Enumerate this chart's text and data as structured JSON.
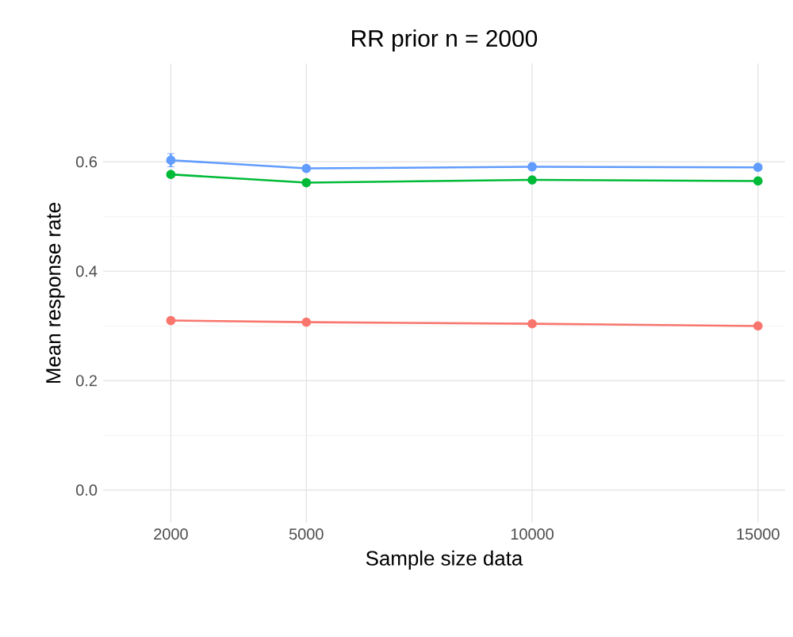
{
  "chart_data": {
    "type": "line",
    "title": "RR prior n = 2000",
    "xlabel": "Sample size data",
    "ylabel": "Mean response rate",
    "x": [
      2000,
      5000,
      10000,
      15000
    ],
    "series": [
      {
        "color": "#619cff",
        "values": [
          0.603,
          0.588,
          0.591,
          0.59
        ],
        "errors": [
          0.012,
          null,
          null,
          null
        ]
      },
      {
        "color": "#00ba38",
        "values": [
          0.577,
          0.562,
          0.567,
          0.565
        ]
      },
      {
        "color": "#f8766d",
        "values": [
          0.31,
          0.307,
          0.304,
          0.3
        ]
      }
    ],
    "xlim": [
      500,
      15600
    ],
    "ylim": [
      -0.06,
      0.78
    ],
    "xticks": [
      2000,
      5000,
      10000,
      15000
    ],
    "yticks": [
      {
        "value": 0,
        "label": "0.0"
      },
      {
        "value": 0.2,
        "label": "0.2"
      },
      {
        "value": 0.4,
        "label": "0.4"
      },
      {
        "value": 0.6,
        "label": "0.6"
      }
    ],
    "grid": true,
    "marker": "circle",
    "line_style": "solid"
  }
}
